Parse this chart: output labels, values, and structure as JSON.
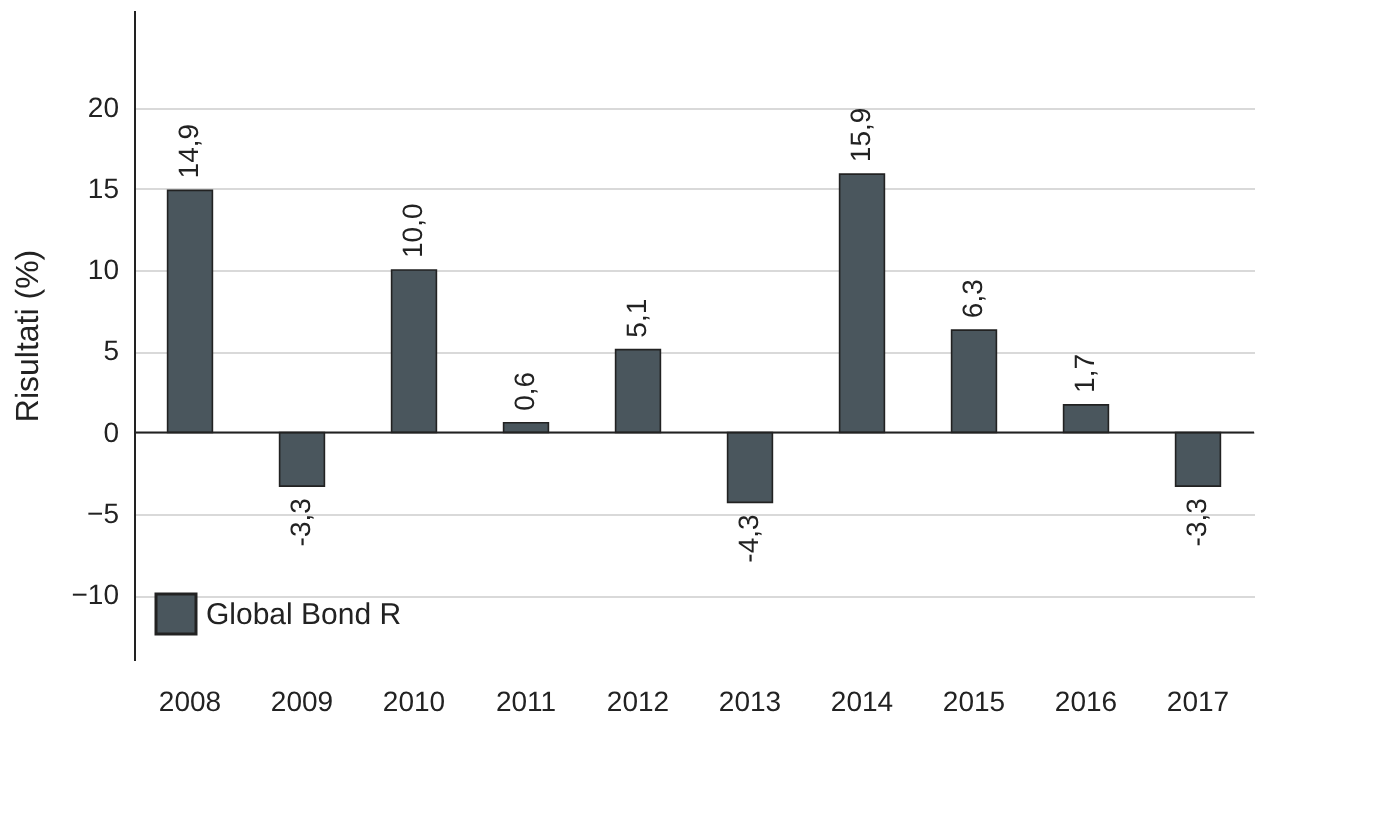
{
  "chart_data": {
    "type": "bar",
    "ylabel": "Risultati (%)",
    "categories": [
      "2008",
      "2009",
      "2010",
      "2011",
      "2012",
      "2013",
      "2014",
      "2015",
      "2016",
      "2017"
    ],
    "series": [
      {
        "name": "Global Bond R",
        "color": "#4a565d",
        "values": [
          14.9,
          -3.3,
          10.0,
          0.6,
          5.1,
          -4.3,
          15.9,
          6.3,
          1.7,
          -3.3
        ],
        "value_labels": [
          "14,9",
          "-3,3",
          "10,0",
          "0,6",
          "5,1",
          "-4,3",
          "15,9",
          "6,3",
          "1,7",
          "-3,3"
        ]
      }
    ],
    "ylim": [
      -14,
      26
    ],
    "yticks": [
      -10,
      -5,
      0,
      5,
      10,
      15,
      20
    ],
    "grid": "y",
    "legend": "bottom left"
  }
}
